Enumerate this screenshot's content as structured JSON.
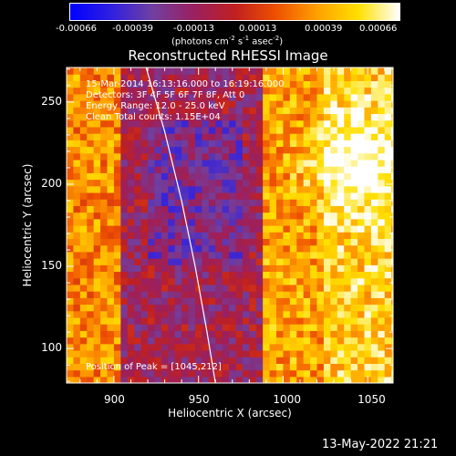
{
  "colorbar": {
    "tick_labels": [
      "-0.00066",
      "-0.00039",
      "-0.00013",
      "0.00013",
      "0.00039",
      "0.00066"
    ],
    "unit_prefix": "(photons cm",
    "unit_exp1": "-2",
    "unit_mid": " s",
    "unit_exp2": "-1",
    "unit_mid2": " asec",
    "unit_exp3": "-2",
    "unit_suffix": ")",
    "stops": [
      "#0000ff",
      "#3020e0",
      "#7040a0",
      "#9a2060",
      "#c02020",
      "#ee5000",
      "#ffa000",
      "#ffe000",
      "#ffffff"
    ]
  },
  "chart_data": {
    "type": "heatmap",
    "title": "Reconstructed RHESSI Image",
    "xlabel": "Heliocentric X (arcsec)",
    "ylabel": "Heliocentric Y (arcsec)",
    "x_ticks": [
      900,
      950,
      1000,
      1050
    ],
    "y_ticks": [
      100,
      150,
      200,
      250
    ],
    "xlim": [
      872,
      1065
    ],
    "ylim": [
      79,
      271
    ],
    "annotations": [
      "15-Mar-2014 16:13:16.000 to 16:19:16.000",
      "Detectors: 3F 4F 5F 6F 7F 8F, Att 0",
      "Energy Range: 12.0 - 25.0 keV",
      "Clean    Total counts: 1.15E+04"
    ],
    "peak_label": "Position of Peak = [1045,212]",
    "peak": [
      1045,
      212
    ],
    "limb_curve": [
      [
        919,
        271
      ],
      [
        930,
        232
      ],
      [
        940,
        190
      ],
      [
        948,
        150
      ],
      [
        955,
        110
      ],
      [
        960,
        79
      ]
    ],
    "columns": [
      {
        "x_from": 872,
        "x_to": 905,
        "level": 0.72
      },
      {
        "x_from": 905,
        "x_to": 990,
        "level": 0.4
      },
      {
        "x_from": 990,
        "x_to": 1025,
        "level": 0.76
      },
      {
        "x_from": 1025,
        "x_to": 1065,
        "level": 0.85
      }
    ],
    "value_range": [
      -0.00066,
      0.00066
    ]
  },
  "footer": {
    "timestamp": "13-May-2022 21:21"
  }
}
